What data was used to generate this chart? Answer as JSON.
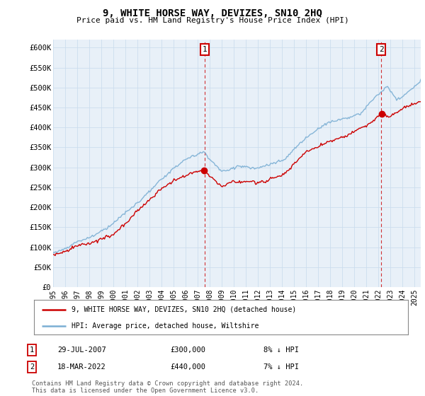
{
  "title": "9, WHITE HORSE WAY, DEVIZES, SN10 2HQ",
  "subtitle": "Price paid vs. HM Land Registry's House Price Index (HPI)",
  "ylabel_ticks": [
    "£0",
    "£50K",
    "£100K",
    "£150K",
    "£200K",
    "£250K",
    "£300K",
    "£350K",
    "£400K",
    "£450K",
    "£500K",
    "£550K",
    "£600K"
  ],
  "ytick_values": [
    0,
    50000,
    100000,
    150000,
    200000,
    250000,
    300000,
    350000,
    400000,
    450000,
    500000,
    550000,
    600000
  ],
  "ylim": [
    0,
    620000
  ],
  "xlim_start": 1995.0,
  "xlim_end": 2025.5,
  "hpi_color": "#7bafd4",
  "price_color": "#cc0000",
  "marker1_date": 2007.57,
  "marker1_price": 300000,
  "marker1_label": "1",
  "marker2_date": 2022.21,
  "marker2_price": 440000,
  "marker2_label": "2",
  "legend_line1": "9, WHITE HORSE WAY, DEVIZES, SN10 2HQ (detached house)",
  "legend_line2": "HPI: Average price, detached house, Wiltshire",
  "table_rows": [
    {
      "num": "1",
      "date": "29-JUL-2007",
      "price": "£300,000",
      "pct": "8% ↓ HPI"
    },
    {
      "num": "2",
      "date": "18-MAR-2022",
      "price": "£440,000",
      "pct": "7% ↓ HPI"
    }
  ],
  "footer": "Contains HM Land Registry data © Crown copyright and database right 2024.\nThis data is licensed under the Open Government Licence v3.0.",
  "background_color": "#ffffff",
  "grid_color": "#ccddee",
  "chart_bg": "#e8f0f8"
}
